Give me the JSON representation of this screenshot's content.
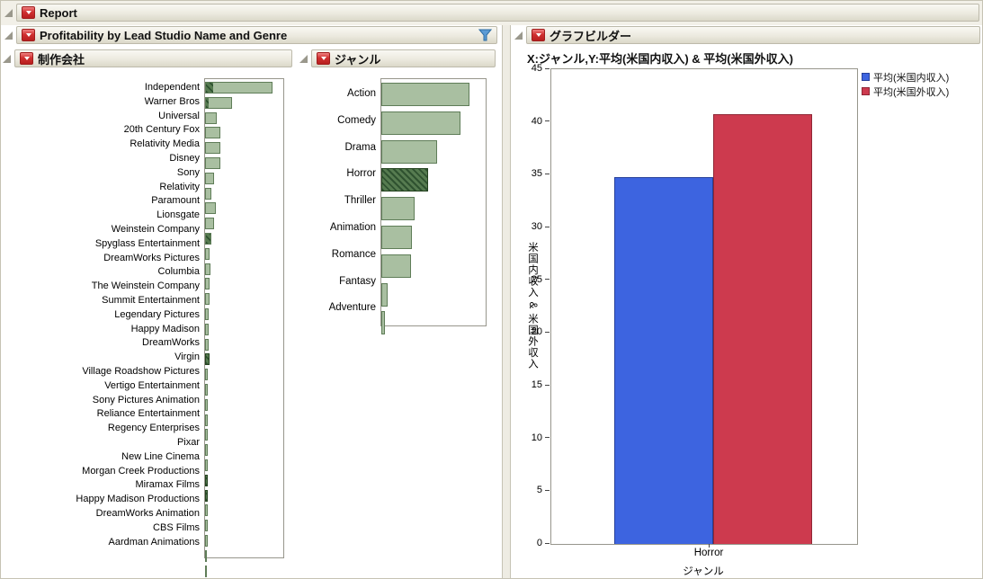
{
  "window": {
    "title": "Report"
  },
  "left": {
    "panel_title": "Profitability by Lead Studio Name and Genre"
  },
  "right": {
    "panel_title": "グラフビルダー"
  },
  "colors": {
    "bar_fill": "#a9bfa1",
    "bar_border": "#5f7d58",
    "selection_fill": "#2f5230",
    "selection_stripe": "#567b50",
    "header_gradient_top": "#f9f8f3",
    "header_gradient_bottom": "#dbd8c9",
    "funnel_blue": "#4a90d9"
  },
  "chart_data": [
    {
      "id": "studio",
      "type": "bar",
      "orientation": "horizontal",
      "title": "制作会社",
      "value_unit": "relative length (no numeric axis shown)",
      "categories": [
        "Independent",
        "Warner Bros",
        "Universal",
        "20th Century Fox",
        "Relativity Media",
        "Disney",
        "Sony",
        "Relativity",
        "Paramount",
        "Lionsgate",
        "Weinstein Company",
        "Spyglass Entertainment",
        "DreamWorks Pictures",
        "Columbia",
        "The Weinstein Company",
        "Summit Entertainment",
        "Legendary Pictures",
        "Happy Madison",
        "DreamWorks",
        "Virgin",
        "Village Roadshow Pictures",
        "Vertigo Entertainment",
        "Sony Pictures Animation",
        "Reliance Entertainment",
        "Regency Enterprises",
        "Pixar",
        "New Line Cinema",
        "Morgan Creek Productions",
        "Miramax Films",
        "Happy Madison Productions",
        "DreamWorks Animation",
        "CBS Films",
        "Aardman Animations"
      ],
      "values": [
        75,
        30,
        13,
        17,
        17,
        17,
        10,
        7,
        12,
        10,
        7,
        5,
        6,
        5,
        5,
        4,
        4,
        4,
        5,
        3,
        3,
        3,
        3,
        3,
        3,
        3,
        3,
        3,
        3,
        3,
        3,
        2,
        2
      ],
      "selected_values": [
        8,
        3,
        0,
        0,
        0,
        0,
        0,
        0,
        0,
        0,
        5,
        0,
        0,
        0,
        0,
        0,
        0,
        0,
        5,
        0,
        0,
        0,
        0,
        0,
        0,
        0,
        3,
        3,
        0,
        0,
        0,
        0,
        0
      ]
    },
    {
      "id": "genre",
      "type": "bar",
      "orientation": "horizontal",
      "title": "ジャンル",
      "value_unit": "relative length (no numeric axis shown)",
      "categories": [
        "Action",
        "Comedy",
        "Drama",
        "Horror",
        "Thriller",
        "Animation",
        "Romance",
        "Fantasy",
        "Adventure"
      ],
      "values": [
        98,
        88,
        62,
        52,
        37,
        34,
        33,
        7,
        4
      ],
      "selected": [
        "Horror"
      ]
    },
    {
      "id": "graph-builder",
      "type": "bar",
      "title": "X:ジャンル,Y:平均(米国内収入) & 平均(米国外収入)",
      "categories": [
        "Horror"
      ],
      "series": [
        {
          "name": "平均(米国内収入)",
          "color": "#3d64e0",
          "border": "#27409a",
          "values": [
            34.8
          ]
        },
        {
          "name": "平均(米国外収入)",
          "color": "#cd3a4e",
          "border": "#8f2635",
          "values": [
            40.7
          ]
        }
      ],
      "xlabel": "ジャンル",
      "ylabel": "米国内収入 & 米国外収入",
      "ylim": [
        0,
        45
      ],
      "yticks": [
        0,
        5,
        10,
        15,
        20,
        25,
        30,
        35,
        40,
        45
      ],
      "grid": false,
      "legend_position": "right-top"
    }
  ]
}
